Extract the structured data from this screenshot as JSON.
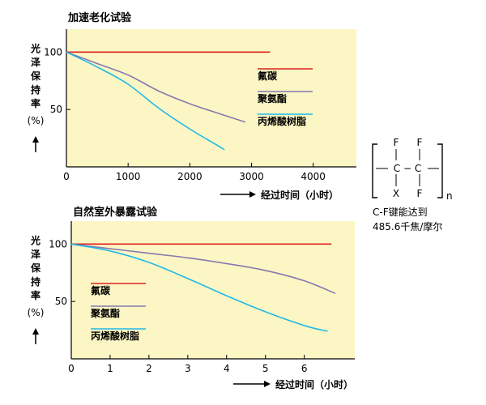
{
  "chart_data": [
    {
      "type": "line",
      "title": "加速老化试验",
      "ylabel": [
        "光",
        "泽",
        "保",
        "持",
        "率",
        "(%)"
      ],
      "xlabel": "经过时间（小时）",
      "x_ticks": [
        0,
        1000,
        2000,
        3000,
        4000
      ],
      "y_ticks": [
        50,
        100
      ],
      "xlim": [
        0,
        4700
      ],
      "ylim": [
        0,
        120
      ],
      "grid": false,
      "legend_position": "right",
      "series": [
        {
          "name": "氟碳",
          "color": "#e02020",
          "x": [
            0,
            3300
          ],
          "y": [
            100,
            100
          ]
        },
        {
          "name": "聚氨酯",
          "color": "#8878b0",
          "x": [
            0,
            500,
            1000,
            1500,
            2000,
            2500,
            2900
          ],
          "y": [
            100,
            90,
            80,
            66,
            55,
            46,
            39
          ]
        },
        {
          "name": "丙烯酸树脂",
          "color": "#22b8e8",
          "x": [
            0,
            500,
            1000,
            1500,
            2000,
            2500,
            2550
          ],
          "y": [
            100,
            87,
            72,
            51,
            33,
            17,
            15
          ]
        }
      ]
    },
    {
      "type": "line",
      "title": "自然室外暴露试验",
      "ylabel": [
        "光",
        "泽",
        "保",
        "持",
        "率",
        "(%)"
      ],
      "xlabel": "经过时间（小时）",
      "x_ticks": [
        0,
        1,
        2,
        3,
        4,
        5,
        6
      ],
      "y_ticks": [
        50,
        100
      ],
      "xlim": [
        0,
        7.3
      ],
      "ylim": [
        0,
        120
      ],
      "grid": false,
      "legend_position": "lower-left",
      "series": [
        {
          "name": "氟碳",
          "color": "#e02020",
          "x": [
            0,
            6.7
          ],
          "y": [
            100,
            100
          ]
        },
        {
          "name": "聚氨酯",
          "color": "#8878b0",
          "x": [
            0,
            1,
            2,
            3,
            4,
            5,
            6,
            6.8
          ],
          "y": [
            100,
            96,
            92,
            88,
            83,
            77,
            68,
            57
          ]
        },
        {
          "name": "丙烯酸树脂",
          "color": "#22b8e8",
          "x": [
            0,
            1,
            2,
            3,
            4,
            5,
            6,
            6.6
          ],
          "y": [
            100,
            94,
            84,
            70,
            55,
            41,
            29,
            24
          ]
        }
      ]
    }
  ],
  "formula": {
    "top_row": [
      "F",
      "F"
    ],
    "middle_row": "C − C",
    "bottom_row": [
      "X",
      "F"
    ],
    "subscript": "n",
    "caption_line1": "C-F键能达到",
    "caption_line2": "485.6千焦/摩尔"
  }
}
